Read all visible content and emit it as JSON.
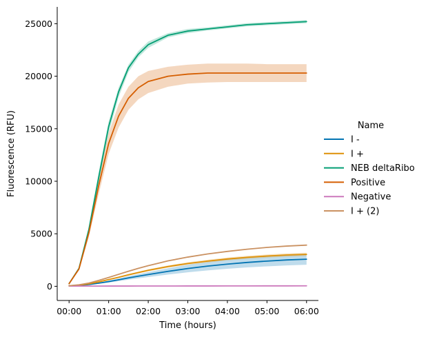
{
  "chart_data": {
    "type": "line",
    "title": "",
    "xlabel": "Time (hours)",
    "ylabel": "Fluorescence (RFU)",
    "xlim": [
      -0.3,
      6.3
    ],
    "ylim": [
      -1350,
      26600
    ],
    "x_ticks": [
      0,
      1,
      2,
      3,
      4,
      5,
      6
    ],
    "x_tick_labels": [
      "00:00",
      "01:00",
      "02:00",
      "03:00",
      "04:00",
      "05:00",
      "06:00"
    ],
    "y_ticks": [
      0,
      5000,
      10000,
      15000,
      20000,
      25000
    ],
    "y_tick_labels": [
      "0",
      "5000",
      "10000",
      "15000",
      "20000",
      "25000"
    ],
    "legend_title": "Name",
    "legend_position": "right",
    "x": [
      0,
      0.25,
      0.5,
      0.75,
      1.0,
      1.25,
      1.5,
      1.75,
      2.0,
      2.5,
      3.0,
      3.5,
      4.0,
      4.5,
      5.0,
      5.5,
      6.0
    ],
    "series": [
      {
        "name": "I -",
        "color": "#0173b2",
        "values": [
          50,
          80,
          170,
          300,
          450,
          620,
          800,
          960,
          1120,
          1420,
          1690,
          1920,
          2110,
          2270,
          2400,
          2510,
          2580
        ],
        "lower": [
          50,
          70,
          140,
          240,
          360,
          490,
          630,
          760,
          880,
          1120,
          1330,
          1510,
          1670,
          1800,
          1900,
          1990,
          2050
        ],
        "upper": [
          50,
          90,
          200,
          360,
          540,
          750,
          970,
          1160,
          1360,
          1720,
          2050,
          2330,
          2550,
          2740,
          2900,
          3030,
          3110
        ]
      },
      {
        "name": "I +",
        "color": "#de8f05",
        "values": [
          50,
          110,
          230,
          420,
          640,
          860,
          1090,
          1310,
          1520,
          1880,
          2170,
          2400,
          2600,
          2760,
          2880,
          2980,
          3040
        ],
        "lower": [
          50,
          100,
          210,
          380,
          590,
          800,
          1010,
          1220,
          1420,
          1770,
          2050,
          2270,
          2460,
          2610,
          2730,
          2820,
          2880
        ],
        "upper": [
          50,
          120,
          250,
          460,
          690,
          920,
          1170,
          1400,
          1620,
          1990,
          2290,
          2530,
          2740,
          2910,
          3030,
          3140,
          3200
        ]
      },
      {
        "name": "NEB deltaRibo",
        "color": "#029e73",
        "values": [
          250,
          1700,
          5400,
          10400,
          15200,
          18500,
          20800,
          22100,
          23000,
          23900,
          24300,
          24500,
          24700,
          24900,
          25000,
          25100,
          25200
        ],
        "lower": [
          250,
          1600,
          5100,
          9900,
          14600,
          18000,
          20400,
          21800,
          22700,
          23700,
          24100,
          24350,
          24550,
          24750,
          24850,
          24950,
          25050
        ],
        "upper": [
          250,
          1800,
          5700,
          10900,
          15700,
          18900,
          21100,
          22400,
          23300,
          24100,
          24500,
          24650,
          24850,
          25050,
          25150,
          25250,
          25350
        ]
      },
      {
        "name": "Positive",
        "color": "#d55e00",
        "values": [
          250,
          1650,
          5100,
          9600,
          13600,
          16200,
          17900,
          18900,
          19500,
          20000,
          20200,
          20300,
          20300,
          20300,
          20300,
          20300,
          20300
        ],
        "lower": [
          250,
          1500,
          4700,
          8800,
          12600,
          15100,
          16800,
          17800,
          18400,
          19000,
          19300,
          19400,
          19450,
          19450,
          19450,
          19450,
          19450
        ],
        "upper": [
          250,
          1800,
          5500,
          10400,
          14600,
          17300,
          19000,
          20000,
          20500,
          20900,
          21100,
          21200,
          21200,
          21200,
          21150,
          21150,
          21150
        ]
      },
      {
        "name": "Negative",
        "color": "#cc78bc",
        "values": [
          20,
          20,
          21,
          22,
          23,
          24,
          25,
          26,
          27,
          29,
          31,
          33,
          35,
          37,
          39,
          41,
          43
        ],
        "lower": [
          20,
          20,
          21,
          22,
          23,
          24,
          25,
          26,
          27,
          29,
          31,
          33,
          35,
          37,
          39,
          41,
          43
        ],
        "upper": [
          20,
          20,
          21,
          22,
          23,
          24,
          25,
          26,
          27,
          29,
          31,
          33,
          35,
          37,
          39,
          41,
          43
        ]
      },
      {
        "name": "I + (2)",
        "color": "#ca9161",
        "values": [
          50,
          140,
          310,
          560,
          840,
          1140,
          1430,
          1710,
          1960,
          2420,
          2780,
          3080,
          3320,
          3530,
          3700,
          3830,
          3920
        ],
        "lower": [
          50,
          140,
          310,
          560,
          840,
          1140,
          1430,
          1710,
          1960,
          2420,
          2780,
          3080,
          3320,
          3530,
          3700,
          3830,
          3920
        ],
        "upper": [
          50,
          140,
          310,
          560,
          840,
          1140,
          1430,
          1710,
          1960,
          2420,
          2780,
          3080,
          3320,
          3530,
          3700,
          3830,
          3920
        ]
      }
    ]
  }
}
